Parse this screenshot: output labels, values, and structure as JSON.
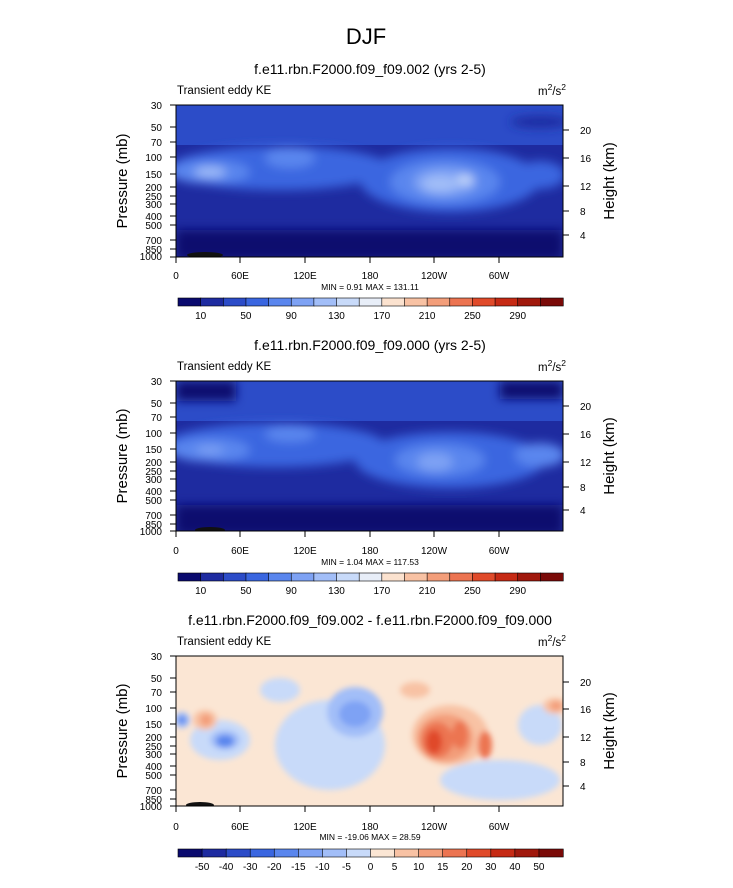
{
  "figure": {
    "title": "DJF"
  },
  "chart_data": [
    {
      "type": "heatmap",
      "title": "f.e11.rbn.F2000.f09_f09.002 (yrs 2-5)",
      "subtitle_left": "Transient eddy KE",
      "units": "m2/s2",
      "units_base": "m",
      "units_exp1": "2",
      "units_mid": "/s",
      "units_exp2": "2",
      "ylabel": "Pressure (mb)",
      "y2label": "Height (km)",
      "x_ticks": [
        "0",
        "60E",
        "120E",
        "180",
        "120W",
        "60W"
      ],
      "y_ticks": [
        "30",
        "50",
        "70",
        "100",
        "150",
        "200",
        "250",
        "300",
        "400",
        "500",
        "700",
        "850",
        "1000"
      ],
      "y2_ticks": [
        "20",
        "16",
        "12",
        "8",
        "4"
      ],
      "stats": "MIN =   0.91  MAX = 131.11",
      "min": 0.91,
      "max": 131.11,
      "colorbar": {
        "labels": [
          "10",
          "50",
          "90",
          "130",
          "170",
          "210",
          "250",
          "290"
        ],
        "colors": [
          "#0a0a6e",
          "#1e2ba0",
          "#2c4cc8",
          "#3a66e0",
          "#5a86ee",
          "#7ea2f4",
          "#a2bef8",
          "#c8daf9",
          "#e8eef8",
          "#fbe2cf",
          "#f8c2a4",
          "#f39e7a",
          "#ec7451",
          "#e04a2a",
          "#c62a14",
          "#a0180c",
          "#7a0a08"
        ]
      }
    },
    {
      "type": "heatmap",
      "title": "f.e11.rbn.F2000.f09_f09.000 (yrs 2-5)",
      "subtitle_left": "Transient eddy KE",
      "units": "m2/s2",
      "units_base": "m",
      "units_exp1": "2",
      "units_mid": "/s",
      "units_exp2": "2",
      "ylabel": "Pressure (mb)",
      "y2label": "Height (km)",
      "x_ticks": [
        "0",
        "60E",
        "120E",
        "180",
        "120W",
        "60W"
      ],
      "y_ticks": [
        "30",
        "50",
        "70",
        "100",
        "150",
        "200",
        "250",
        "300",
        "400",
        "500",
        "700",
        "850",
        "1000"
      ],
      "y2_ticks": [
        "20",
        "16",
        "12",
        "8",
        "4"
      ],
      "stats": "MIN =   1.04  MAX = 117.53",
      "min": 1.04,
      "max": 117.53,
      "colorbar": {
        "labels": [
          "10",
          "50",
          "90",
          "130",
          "170",
          "210",
          "250",
          "290"
        ],
        "colors": [
          "#0a0a6e",
          "#1e2ba0",
          "#2c4cc8",
          "#3a66e0",
          "#5a86ee",
          "#7ea2f4",
          "#a2bef8",
          "#c8daf9",
          "#e8eef8",
          "#fbe2cf",
          "#f8c2a4",
          "#f39e7a",
          "#ec7451",
          "#e04a2a",
          "#c62a14",
          "#a0180c",
          "#7a0a08"
        ]
      }
    },
    {
      "type": "heatmap",
      "title": "f.e11.rbn.F2000.f09_f09.002 - f.e11.rbn.F2000.f09_f09.000",
      "subtitle_left": "Transient eddy KE",
      "units": "m2/s2",
      "units_base": "m",
      "units_exp1": "2",
      "units_mid": "/s",
      "units_exp2": "2",
      "ylabel": "Pressure (mb)",
      "y2label": "Height (km)",
      "x_ticks": [
        "0",
        "60E",
        "120E",
        "180",
        "120W",
        "60W"
      ],
      "y_ticks": [
        "30",
        "50",
        "70",
        "100",
        "150",
        "200",
        "250",
        "300",
        "400",
        "500",
        "700",
        "850",
        "1000"
      ],
      "y2_ticks": [
        "20",
        "16",
        "12",
        "8",
        "4"
      ],
      "stats": "MIN = -19.06  MAX =  28.59",
      "min": -19.06,
      "max": 28.59,
      "colorbar": {
        "labels": [
          "-50",
          "-40",
          "-30",
          "-20",
          "-15",
          "-10",
          "-5",
          "0",
          "5",
          "10",
          "15",
          "20",
          "30",
          "40",
          "50"
        ],
        "colors": [
          "#0a0a6e",
          "#1e2ba0",
          "#2c4cc8",
          "#3a66e0",
          "#5a86ee",
          "#7ea2f4",
          "#a2bef8",
          "#c8daf9",
          "#fbe6d4",
          "#f8c2a4",
          "#f39e7a",
          "#ec7451",
          "#e04a2a",
          "#c62a14",
          "#a0180c",
          "#7a0a08"
        ]
      }
    }
  ]
}
